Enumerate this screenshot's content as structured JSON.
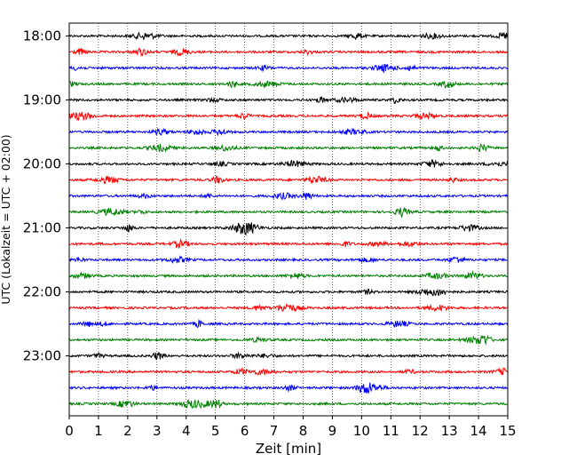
{
  "chart_data": {
    "type": "line",
    "title": "",
    "xlabel": "Zeit  [min]",
    "ylabel": "UTC (Lokalzeit = UTC + 02:00)",
    "xlim": [
      0,
      15
    ],
    "x_ticks": [
      "0",
      "1",
      "2",
      "3",
      "4",
      "5",
      "6",
      "7",
      "8",
      "9",
      "10",
      "11",
      "12",
      "13",
      "14",
      "15"
    ],
    "y_ticks": [
      "18:00",
      "19:00",
      "20:00",
      "21:00",
      "22:00",
      "23:00"
    ],
    "trace_interval_minutes": 15,
    "trace_start": "18:00",
    "trace_count": 24,
    "trace_colors": [
      "#000000",
      "#ff0000",
      "#0000ff",
      "#008000"
    ],
    "grid": "vertical dotted lines at each minute"
  }
}
